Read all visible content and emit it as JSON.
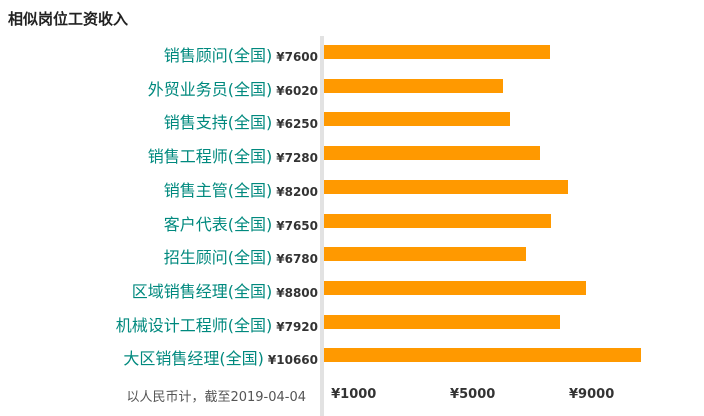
{
  "title": "相似岗位工资收入",
  "note": "以人民币计，截至2019-04-04",
  "colors": {
    "bar": "#ff9900",
    "label": "#00897e",
    "value": "#333333"
  },
  "chart_data": {
    "type": "bar",
    "orientation": "horizontal",
    "title": "相似岗位工资收入",
    "categories": [
      "销售顾问(全国)",
      "外贸业务员(全国)",
      "销售支持(全国)",
      "销售工程师(全国)",
      "销售主管(全国)",
      "客户代表(全国)",
      "招生顾问(全国)",
      "区域销售经理(全国)",
      "机械设计工程师(全国)",
      "大区销售经理(全国)"
    ],
    "values": [
      7600,
      6020,
      6250,
      7280,
      8200,
      7650,
      6780,
      8800,
      7920,
      10660
    ],
    "value_labels": [
      "¥7600",
      "¥6020",
      "¥6250",
      "¥7280",
      "¥8200",
      "¥7650",
      "¥6780",
      "¥8800",
      "¥7920",
      "¥10660"
    ],
    "xticks": [
      1000,
      5000,
      9000
    ],
    "xtick_labels": [
      "¥1000",
      "¥5000",
      "¥9000"
    ],
    "xlim": [
      0,
      10660
    ],
    "grid": false
  }
}
